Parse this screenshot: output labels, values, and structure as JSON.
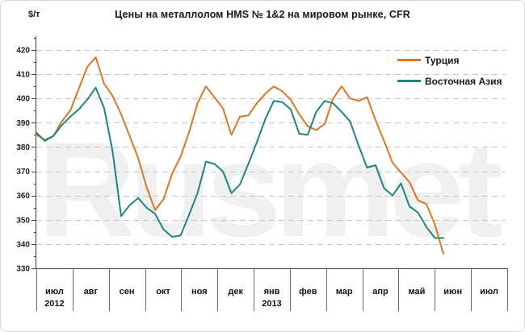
{
  "watermark": "Rusmet",
  "chart_data": {
    "type": "line",
    "title": "Цены на металлолом HMS № 1&2 на мировом рынке, CFR",
    "xlabel": "",
    "ylabel": "$/т",
    "ylim": [
      330,
      420
    ],
    "ytick_step": 10,
    "grid": "horizontal-dashed",
    "legend_position": "top-right",
    "frequency": "weekly",
    "months": [
      {
        "label": "июл",
        "year": "2012"
      },
      {
        "label": "авг"
      },
      {
        "label": "сен"
      },
      {
        "label": "окт"
      },
      {
        "label": "ноя"
      },
      {
        "label": "дек"
      },
      {
        "label": "янв",
        "year": "2013"
      },
      {
        "label": "фев"
      },
      {
        "label": "мар"
      },
      {
        "label": "апр"
      },
      {
        "label": "май"
      },
      {
        "label": "июн"
      },
      {
        "label": "июл"
      }
    ],
    "series": [
      {
        "id": "turkey",
        "name": "Турция",
        "color": "#DA7626",
        "values": [
          385,
          383,
          384.5,
          390.5,
          395,
          404,
          413,
          417,
          406,
          401,
          393.5,
          384.5,
          375.5,
          363.5,
          354,
          358.5,
          369,
          376,
          386,
          398,
          405,
          400.5,
          396,
          385,
          392.5,
          393,
          398,
          402,
          405,
          403,
          399.5,
          393.5,
          388.5,
          387,
          389.5,
          400,
          405,
          400,
          399,
          400.5,
          391,
          382.5,
          373.5,
          369.5,
          365.5,
          358,
          356.5,
          348,
          336
        ]
      },
      {
        "id": "east-asia",
        "name": "Восточная Азия",
        "color": "#1F857C",
        "values": [
          386,
          382.5,
          384.5,
          389,
          392.5,
          395.5,
          399.5,
          404.5,
          396,
          378,
          351.5,
          356,
          359,
          355,
          352.5,
          346,
          343,
          343.5,
          352,
          361,
          374,
          373,
          370,
          361,
          364.5,
          373,
          382,
          391.5,
          399,
          398.5,
          395.5,
          385.5,
          385,
          394.5,
          399,
          398,
          394.5,
          390.5,
          380.5,
          371.5,
          372.5,
          363,
          360,
          365,
          355.5,
          353,
          347,
          342.5,
          342.5
        ]
      }
    ]
  }
}
